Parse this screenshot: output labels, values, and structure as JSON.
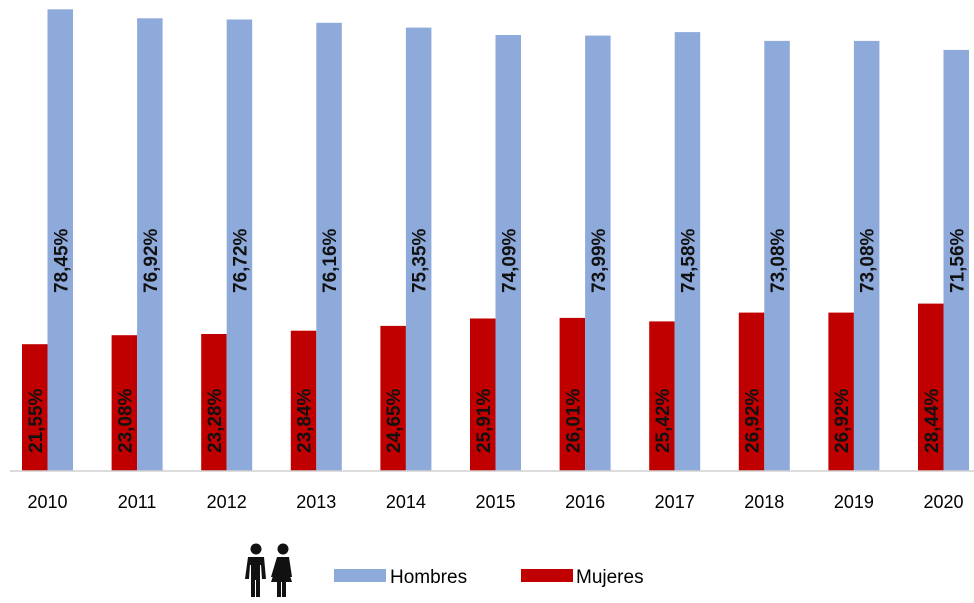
{
  "chart_data": {
    "type": "bar",
    "categories": [
      "2010",
      "2011",
      "2012",
      "2013",
      "2014",
      "2015",
      "2016",
      "2017",
      "2018",
      "2019",
      "2020"
    ],
    "series": [
      {
        "name": "Mujeres",
        "color": "#c00000",
        "values": [
          21.55,
          23.08,
          23.28,
          23.84,
          24.65,
          25.91,
          26.01,
          25.42,
          26.92,
          26.92,
          28.44
        ],
        "labels": [
          "21,55%",
          "23,08%",
          "23,28%",
          "23,84%",
          "24,65%",
          "25,91%",
          "26,01%",
          "25,42%",
          "26,92%",
          "26,92%",
          "28,44%"
        ]
      },
      {
        "name": "Hombres",
        "color": "#8eaadb",
        "values": [
          78.45,
          76.92,
          76.72,
          76.16,
          75.35,
          74.09,
          73.99,
          74.58,
          73.08,
          73.08,
          71.56
        ],
        "labels": [
          "78,45%",
          "76,92%",
          "76,72%",
          "76,16%",
          "75,35%",
          "74,09%",
          "73,99%",
          "74,58%",
          "73,08%",
          "73,08%",
          "71,56%"
        ]
      }
    ],
    "title": "",
    "xlabel": "",
    "ylabel": "",
    "ylim": [
      0,
      80
    ],
    "grid": false,
    "legend": {
      "position": "bottom",
      "entries": [
        "Hombres",
        "Mujeres"
      ],
      "icon": "people-couple-icon"
    }
  }
}
